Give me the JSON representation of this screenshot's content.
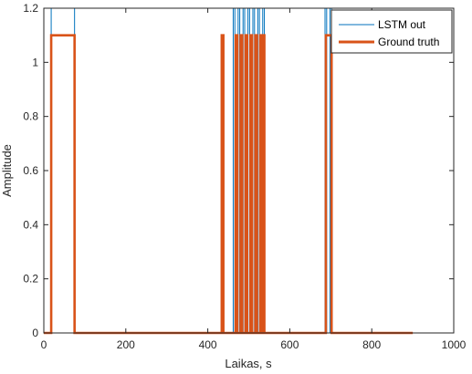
{
  "chart_data": {
    "type": "line",
    "xlabel": "Laikas, s",
    "ylabel": "Amplitude",
    "xlim": [
      0,
      1000
    ],
    "ylim": [
      0,
      1.2
    ],
    "xticks": [
      "0",
      "200",
      "400",
      "600",
      "800",
      "1000"
    ],
    "yticks": [
      "0",
      "0.2",
      "0.4",
      "0.6",
      "0.8",
      "1",
      "1.2"
    ],
    "legend_position": "top-right",
    "grid": false,
    "series": [
      {
        "name": "LSTM out",
        "color": "#0072BD",
        "line_width": "thin",
        "pulses": [
          [
            18,
            75
          ],
          [
            462,
            466
          ],
          [
            474,
            478
          ],
          [
            486,
            490
          ],
          [
            498,
            502
          ],
          [
            510,
            514
          ],
          [
            522,
            526
          ],
          [
            534,
            538
          ],
          [
            686,
            690
          ],
          [
            698,
            702
          ]
        ],
        "pulse_level": 1.2,
        "x_range": [
          0,
          900
        ]
      },
      {
        "name": "Ground truth",
        "color": "#D95319",
        "line_width": "thick",
        "pulses": [
          [
            18,
            75
          ],
          [
            434,
            438
          ],
          [
            468,
            472
          ],
          [
            480,
            484
          ],
          [
            492,
            496
          ],
          [
            504,
            508
          ],
          [
            516,
            520
          ],
          [
            528,
            532
          ],
          [
            534,
            538
          ],
          [
            688,
            702
          ]
        ],
        "pulse_level": 1.1,
        "x_range": [
          0,
          900
        ]
      }
    ]
  }
}
